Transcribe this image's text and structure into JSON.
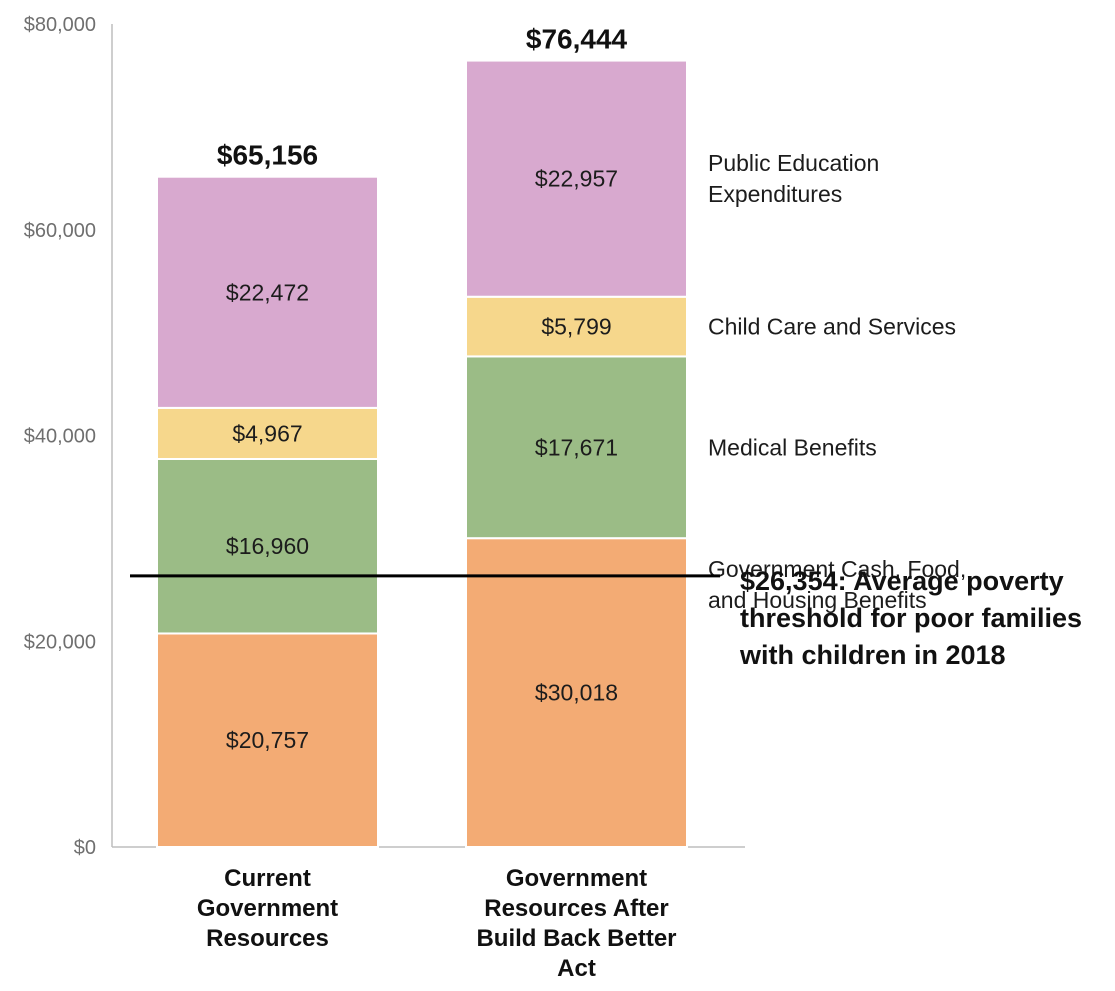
{
  "chart_data": {
    "type": "bar",
    "stacked": true,
    "title": "",
    "xlabel": "",
    "ylabel": "",
    "ylim": [
      0,
      80000
    ],
    "yticks": [
      {
        "value": 0,
        "label": "$0"
      },
      {
        "value": 20000,
        "label": "$20,000"
      },
      {
        "value": 40000,
        "label": "$40,000"
      },
      {
        "value": 60000,
        "label": "$60,000"
      },
      {
        "value": 80000,
        "label": "$80,000"
      }
    ],
    "grid": false,
    "legend_position": "right",
    "categories": [
      [
        "Current",
        "Government",
        "Resources"
      ],
      [
        "Government",
        "Resources After",
        "Build Back Better",
        "Act"
      ]
    ],
    "totals": [
      65156,
      76444
    ],
    "total_labels": [
      "$65,156",
      "$76,444"
    ],
    "series": [
      {
        "name": [
          "Government Cash, Food,",
          "and Housing Benefits"
        ],
        "color": "#f3ab74",
        "values": [
          20757,
          30018
        ],
        "labels": [
          "$20,757",
          "$30,018"
        ]
      },
      {
        "name": [
          "Medical Benefits"
        ],
        "color": "#9bbc86",
        "values": [
          16960,
          17671
        ],
        "labels": [
          "$16,960",
          "$17,671"
        ]
      },
      {
        "name": [
          "Child Care and Services"
        ],
        "color": "#f6d78c",
        "values": [
          4967,
          5799
        ],
        "labels": [
          "$4,967",
          "$5,799"
        ]
      },
      {
        "name": [
          "Public Education",
          "Expenditures"
        ],
        "color": "#d8a9cf",
        "values": [
          22472,
          22957
        ],
        "labels": [
          "$22,472",
          "$22,957"
        ]
      }
    ],
    "reference_line": {
      "value": 26354,
      "color": "#000000",
      "label": [
        "$26,354: Average poverty",
        "threshold for poor families",
        "with children in 2018"
      ]
    }
  }
}
